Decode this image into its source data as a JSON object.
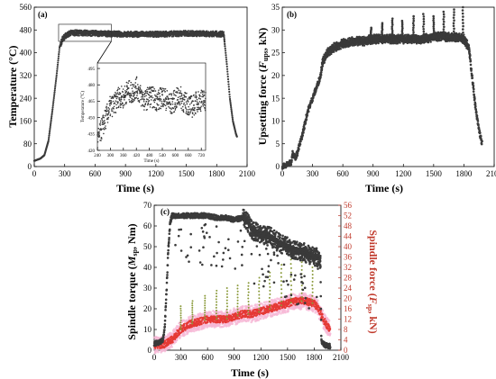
{
  "colors": {
    "primary": "#3a3a3a",
    "secondary": "#e53935",
    "secondary_band": "#f6b8d6",
    "secondary_axis": "#c0392b"
  },
  "chart_data": [
    {
      "panel": "(a)",
      "type": "scatter",
      "xlabel": "Time (s)",
      "ylabel": "Temperature (°C)",
      "xlim": [
        0,
        2100
      ],
      "ylim": [
        0,
        560
      ],
      "xticks": [
        0,
        300,
        600,
        900,
        1200,
        1500,
        1800,
        2100
      ],
      "yticks": [
        0,
        80,
        160,
        240,
        320,
        400,
        480,
        560
      ],
      "series": [
        {
          "points": [
            [
              0,
              20
            ],
            [
              60,
              28
            ],
            [
              100,
              40
            ],
            [
              140,
              90
            ],
            [
              180,
              200
            ],
            [
              220,
              320
            ],
            [
              250,
              420
            ],
            [
              280,
              450
            ],
            [
              320,
              462
            ],
            [
              360,
              470
            ],
            [
              420,
              470
            ],
            [
              600,
              468
            ],
            [
              900,
              465
            ],
            [
              1200,
              465
            ],
            [
              1500,
              468
            ],
            [
              1800,
              466
            ],
            [
              1870,
              465
            ],
            [
              1900,
              360
            ],
            [
              1930,
              240
            ],
            [
              1960,
              160
            ],
            [
              1990,
              115
            ],
            [
              2000,
              105
            ]
          ]
        }
      ],
      "highlight_box": {
        "x": [
          240,
          760
        ],
        "y": [
          440,
          500
        ]
      },
      "inset": {
        "xlabel": "Time (s)",
        "ylabel": "Temperature (°C)",
        "xlim": [
          240,
          740
        ],
        "ylim": [
          420,
          500
        ],
        "xticks": [
          240,
          300,
          360,
          420,
          480,
          540,
          600,
          660,
          720
        ],
        "yticks": [
          420,
          435,
          450,
          465,
          480,
          495
        ],
        "series": [
          {
            "points": [
              [
                240,
                428
              ],
              [
                260,
                440
              ],
              [
                280,
                450
              ],
              [
                300,
                460
              ],
              [
                320,
                462
              ],
              [
                340,
                470
              ],
              [
                360,
                468
              ],
              [
                380,
                475
              ],
              [
                400,
                472
              ],
              [
                420,
                478
              ],
              [
                440,
                470
              ],
              [
                460,
                465
              ],
              [
                480,
                470
              ],
              [
                500,
                468
              ],
              [
                520,
                465
              ],
              [
                540,
                470
              ],
              [
                560,
                466
              ],
              [
                580,
                462
              ],
              [
                600,
                466
              ],
              [
                620,
                470
              ],
              [
                640,
                464
              ],
              [
                660,
                462
              ],
              [
                680,
                460
              ],
              [
                700,
                465
              ],
              [
                720,
                466
              ],
              [
                740,
                466
              ]
            ]
          }
        ]
      }
    },
    {
      "panel": "(b)",
      "type": "scatter",
      "xlabel": "Time (s)",
      "ylabel": "Upsetting force (F_ups, kN)",
      "xlim": [
        0,
        2100
      ],
      "ylim": [
        0,
        35
      ],
      "xticks": [
        0,
        300,
        600,
        900,
        1200,
        1500,
        1800,
        2100
      ],
      "yticks": [
        0,
        5,
        10,
        15,
        20,
        25,
        30,
        35
      ],
      "series": [
        {
          "points": [
            [
              0,
              0
            ],
            [
              60,
              0.5
            ],
            [
              90,
              1
            ],
            [
              100,
              3
            ],
            [
              130,
              2
            ],
            [
              150,
              3
            ],
            [
              200,
              7
            ],
            [
              250,
              12
            ],
            [
              300,
              15
            ],
            [
              350,
              18
            ],
            [
              380,
              20
            ],
            [
              400,
              23
            ],
            [
              450,
              25
            ],
            [
              500,
              26
            ],
            [
              550,
              26.5
            ],
            [
              600,
              27
            ],
            [
              700,
              27.5
            ],
            [
              800,
              27.5
            ],
            [
              900,
              28
            ],
            [
              1000,
              28
            ],
            [
              1100,
              28
            ],
            [
              1200,
              28
            ],
            [
              1300,
              28
            ],
            [
              1400,
              28
            ],
            [
              1500,
              28.5
            ],
            [
              1600,
              28.5
            ],
            [
              1700,
              28.5
            ],
            [
              1800,
              28
            ],
            [
              1850,
              26
            ],
            [
              1880,
              20
            ],
            [
              1920,
              12
            ],
            [
              1950,
              8
            ],
            [
              1970,
              6
            ],
            [
              1980,
              5
            ]
          ]
        }
      ],
      "spikes": [
        {
          "x": 880,
          "y": 30.5
        },
        {
          "x": 990,
          "y": 31.5
        },
        {
          "x": 1090,
          "y": 32.5
        },
        {
          "x": 1190,
          "y": 32
        },
        {
          "x": 1300,
          "y": 33
        },
        {
          "x": 1400,
          "y": 33.5
        },
        {
          "x": 1500,
          "y": 33
        },
        {
          "x": 1600,
          "y": 34
        },
        {
          "x": 1700,
          "y": 34.5
        },
        {
          "x": 1790,
          "y": 35
        }
      ]
    },
    {
      "panel": "(c)",
      "type": "scatter",
      "xlabel": "Time (s)",
      "ylabel": "Spindle torque (M_sp, Nm)",
      "ylabel_right": "Spindle force (F_sp, kN)",
      "xlim": [
        0,
        2100
      ],
      "ylim": [
        0,
        70
      ],
      "ylim_right": [
        0,
        56
      ],
      "xticks": [
        0,
        300,
        600,
        900,
        1200,
        1500,
        1800,
        2100
      ],
      "yticks": [
        0,
        10,
        20,
        30,
        40,
        50,
        60,
        70
      ],
      "yticks_right": [
        0,
        4,
        8,
        12,
        16,
        20,
        24,
        28,
        32,
        36,
        40,
        44,
        48,
        52,
        56
      ],
      "series": [
        {
          "points": [
            [
              0,
              3
            ],
            [
              60,
              4
            ],
            [
              100,
              5
            ],
            [
              120,
              12
            ],
            [
              140,
              30
            ],
            [
              160,
              50
            ],
            [
              180,
              62
            ],
            [
              200,
              65
            ],
            [
              300,
              65
            ],
            [
              400,
              65
            ],
            [
              500,
              65
            ],
            [
              600,
              65
            ],
            [
              700,
              64
            ],
            [
              800,
              64
            ],
            [
              900,
              63
            ],
            [
              1000,
              64
            ],
            [
              1050,
              62
            ],
            [
              1100,
              58
            ],
            [
              1200,
              56
            ],
            [
              1300,
              55
            ],
            [
              1400,
              52
            ],
            [
              1500,
              50
            ],
            [
              1600,
              48
            ],
            [
              1700,
              47
            ],
            [
              1800,
              45
            ],
            [
              1850,
              45
            ],
            [
              1870,
              44
            ],
            [
              1880,
              5
            ],
            [
              1900,
              3
            ],
            [
              1950,
              2
            ],
            [
              1980,
              2
            ]
          ]
        },
        {
          "axis": "right",
          "points": [
            [
              0,
              2
            ],
            [
              100,
              2
            ],
            [
              200,
              4
            ],
            [
              250,
              6
            ],
            [
              300,
              8
            ],
            [
              400,
              10
            ],
            [
              500,
              11
            ],
            [
              600,
              12
            ],
            [
              700,
              12
            ],
            [
              800,
              12
            ],
            [
              900,
              13
            ],
            [
              1000,
              14
            ],
            [
              1100,
              14
            ],
            [
              1200,
              15
            ],
            [
              1300,
              16
            ],
            [
              1400,
              17
            ],
            [
              1500,
              18
            ],
            [
              1600,
              19
            ],
            [
              1700,
              19
            ],
            [
              1800,
              18
            ],
            [
              1850,
              16
            ],
            [
              1900,
              12
            ],
            [
              1950,
              9
            ],
            [
              1980,
              8
            ]
          ]
        }
      ],
      "spikes_right": [
        {
          "x": 300,
          "y": 17
        },
        {
          "x": 430,
          "y": 19
        },
        {
          "x": 570,
          "y": 21
        },
        {
          "x": 700,
          "y": 23
        },
        {
          "x": 820,
          "y": 24
        },
        {
          "x": 940,
          "y": 25
        },
        {
          "x": 1060,
          "y": 26
        },
        {
          "x": 1180,
          "y": 28
        },
        {
          "x": 1300,
          "y": 30
        },
        {
          "x": 1430,
          "y": 33
        },
        {
          "x": 1540,
          "y": 35
        },
        {
          "x": 1660,
          "y": 34
        },
        {
          "x": 1780,
          "y": 32
        }
      ]
    }
  ]
}
